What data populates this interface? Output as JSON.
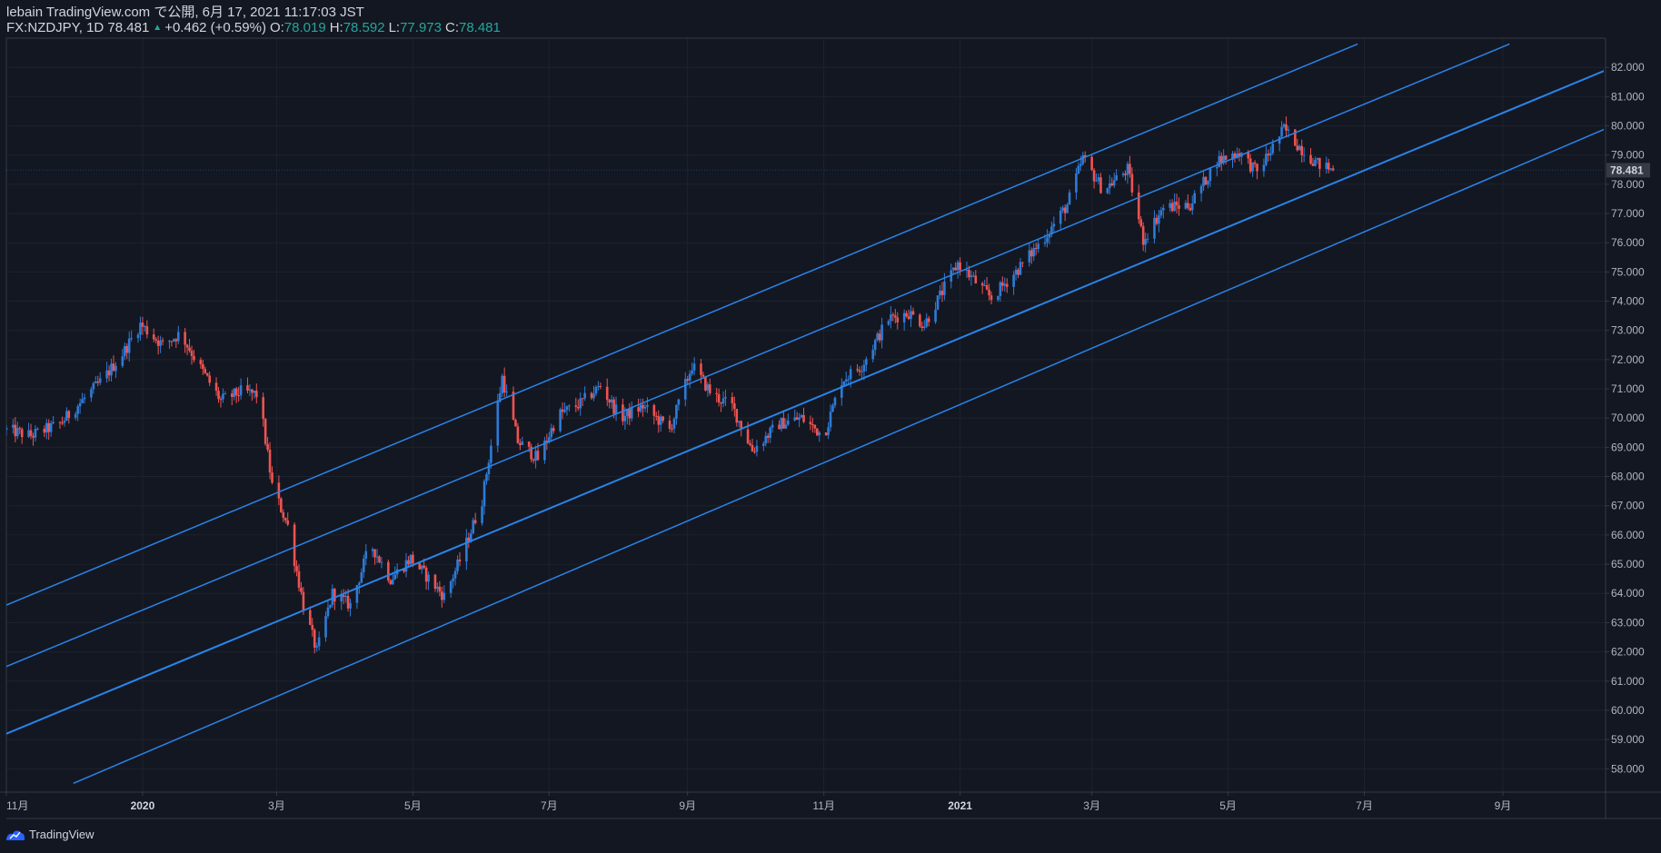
{
  "header": {
    "line1": "lebain TradingView.com で公開, 6月 17, 2021 11:17:03 JST",
    "symbol": "FX:NZDJPY, 1D 78.481",
    "change": "+0.462 (+0.59%)",
    "o_label": "O:",
    "o_value": "78.019",
    "h_label": "H:",
    "h_value": "78.592",
    "l_label": "L:",
    "l_value": "77.973",
    "c_label": "C:",
    "c_value": "78.481"
  },
  "footer": {
    "brand": "TradingView"
  },
  "colors": {
    "bg": "#131722",
    "up": "#2e7bd6",
    "down": "#ef5350",
    "channel": "#2a84e8",
    "accent": "#26a69a"
  },
  "chart_data": {
    "type": "candlestick",
    "symbol": "FX:NZDJPY",
    "interval": "1D",
    "last_price": "78.481",
    "y_ticks": [
      "58.000",
      "59.000",
      "60.000",
      "61.000",
      "62.000",
      "63.000",
      "64.000",
      "65.000",
      "66.000",
      "67.000",
      "68.000",
      "69.000",
      "70.000",
      "71.000",
      "72.000",
      "73.000",
      "74.000",
      "75.000",
      "76.000",
      "77.000",
      "78.000",
      "79.000",
      "80.000",
      "81.000",
      "82.000"
    ],
    "ylim": [
      57.2,
      83.0
    ],
    "x_ticks": [
      {
        "label": "11月",
        "date": "2019-11-01"
      },
      {
        "label": "2020",
        "date": "2020-01-01"
      },
      {
        "label": "3月",
        "date": "2020-03-01"
      },
      {
        "label": "5月",
        "date": "2020-05-01"
      },
      {
        "label": "7月",
        "date": "2020-07-01"
      },
      {
        "label": "9月",
        "date": "2020-09-01"
      },
      {
        "label": "11月",
        "date": "2020-11-01"
      },
      {
        "label": "2021",
        "date": "2021-01-01"
      },
      {
        "label": "3月",
        "date": "2021-03-01"
      },
      {
        "label": "5月",
        "date": "2021-05-01"
      },
      {
        "label": "7月",
        "date": "2021-07-01"
      },
      {
        "label": "9月",
        "date": "2021-09-01"
      }
    ],
    "xlim": [
      "2019-11-01",
      "2021-10-17"
    ],
    "price_path": [
      [
        "2019-11-01",
        69.6
      ],
      [
        "2019-11-12",
        69.4
      ],
      [
        "2019-11-25",
        69.8
      ],
      [
        "2019-12-05",
        70.6
      ],
      [
        "2019-12-14",
        71.3
      ],
      [
        "2019-12-23",
        72.2
      ],
      [
        "2019-12-31",
        73.2
      ],
      [
        "2020-01-10",
        72.5
      ],
      [
        "2020-01-18",
        72.9
      ],
      [
        "2020-01-27",
        71.7
      ],
      [
        "2020-02-05",
        70.6
      ],
      [
        "2020-02-14",
        70.9
      ],
      [
        "2020-02-22",
        70.8
      ],
      [
        "2020-02-28",
        67.7
      ],
      [
        "2020-03-06",
        66.3
      ],
      [
        "2020-03-13",
        63.6
      ],
      [
        "2020-03-19",
        62.0
      ],
      [
        "2020-03-26",
        64.0
      ],
      [
        "2020-04-03",
        63.6
      ],
      [
        "2020-04-12",
        65.7
      ],
      [
        "2020-04-21",
        64.5
      ],
      [
        "2020-04-30",
        65.2
      ],
      [
        "2020-05-07",
        64.6
      ],
      [
        "2020-05-15",
        63.9
      ],
      [
        "2020-05-23",
        65.3
      ],
      [
        "2020-06-01",
        67.2
      ],
      [
        "2020-06-10",
        71.4
      ],
      [
        "2020-06-17",
        69.2
      ],
      [
        "2020-06-26",
        68.6
      ],
      [
        "2020-07-05",
        70.1
      ],
      [
        "2020-07-15",
        70.5
      ],
      [
        "2020-07-24",
        71.1
      ],
      [
        "2020-08-02",
        70.0
      ],
      [
        "2020-08-12",
        70.4
      ],
      [
        "2020-08-24",
        69.6
      ],
      [
        "2020-09-03",
        71.8
      ],
      [
        "2020-09-12",
        70.8
      ],
      [
        "2020-09-21",
        70.4
      ],
      [
        "2020-09-30",
        68.9
      ],
      [
        "2020-10-12",
        69.8
      ],
      [
        "2020-10-22",
        70.0
      ],
      [
        "2020-11-01",
        69.4
      ],
      [
        "2020-11-09",
        71.3
      ],
      [
        "2020-11-18",
        71.8
      ],
      [
        "2020-11-30",
        73.4
      ],
      [
        "2020-12-09",
        73.6
      ],
      [
        "2020-12-16",
        73.2
      ],
      [
        "2020-12-31",
        75.3
      ],
      [
        "2021-01-15",
        74.1
      ],
      [
        "2021-01-27",
        75.1
      ],
      [
        "2021-02-08",
        76.2
      ],
      [
        "2021-02-18",
        77.3
      ],
      [
        "2021-02-25",
        78.9
      ],
      [
        "2021-03-06",
        77.8
      ],
      [
        "2021-03-17",
        78.5
      ],
      [
        "2021-03-24",
        76.1
      ],
      [
        "2021-04-02",
        77.2
      ],
      [
        "2021-04-14",
        77.3
      ],
      [
        "2021-04-26",
        78.8
      ],
      [
        "2021-05-06",
        79.1
      ],
      [
        "2021-05-14",
        78.4
      ],
      [
        "2021-05-26",
        79.9
      ],
      [
        "2021-06-03",
        79.2
      ],
      [
        "2021-06-10",
        78.7
      ],
      [
        "2021-06-17",
        78.481
      ]
    ],
    "channel_lines": [
      {
        "from": [
          "2019-11-01",
          63.6
        ],
        "to": [
          "2021-06-28",
          82.8
        ]
      },
      {
        "from": [
          "2019-11-01",
          61.5
        ],
        "to": [
          "2021-09-04",
          82.8
        ]
      },
      {
        "from": [
          "2019-11-01",
          59.2
        ],
        "to": [
          "2021-10-17",
          81.9
        ]
      },
      {
        "from": [
          "2019-12-01",
          57.5
        ],
        "to": [
          "2021-10-17",
          79.9
        ]
      }
    ]
  }
}
